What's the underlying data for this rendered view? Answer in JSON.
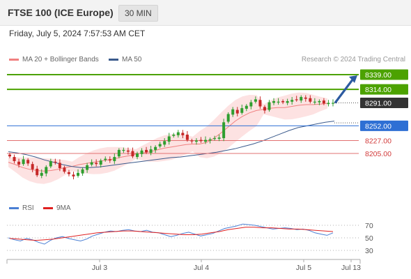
{
  "header": {
    "title": "FTSE 100 (ICE Europe)",
    "timeframe": "30 MIN",
    "datetime": "Friday, July 5, 2024 7:57:53 AM CET",
    "copyright": "Research © 2024 Trading Central"
  },
  "legend": {
    "ma20_label": "MA 20 + Bollinger Bands",
    "ma50_label": "MA 50",
    "rsi_label": "RSI",
    "rsi_ma_label": "9MA"
  },
  "colors": {
    "resistance": "#4ca200",
    "current": "#333333",
    "pivot": "#2e6fd4",
    "support": "#e27070",
    "ma20": "#f08080",
    "ma50": "#3a5a8c",
    "bollinger": "#fcd8d8",
    "candle_up": "#2f9e2f",
    "candle_down": "#c62828",
    "arrow": "#2c5aa0",
    "rsi": "#4a7fd4",
    "rsi_ma": "#e02020"
  },
  "chart_data": [
    {
      "type": "candlestick",
      "title": "FTSE 100 (ICE Europe)",
      "timeframe": "30 MIN",
      "x_ticks": [
        "Jul 3",
        "Jul 4",
        "Jul 5",
        "Jul 13"
      ],
      "levels": [
        {
          "label": "8339.00",
          "value": 8339,
          "kind": "resistance"
        },
        {
          "label": "8314.00",
          "value": 8314,
          "kind": "resistance"
        },
        {
          "label": "8291.00",
          "value": 8291,
          "kind": "current"
        },
        {
          "label": "8252.00",
          "value": 8252,
          "kind": "pivot"
        },
        {
          "label": "8227.00",
          "value": 8227,
          "kind": "support"
        },
        {
          "label": "8205.00",
          "value": 8205,
          "kind": "support"
        }
      ],
      "close_series": [
        8200,
        8192,
        8186,
        8195,
        8188,
        8178,
        8168,
        8172,
        8182,
        8192,
        8190,
        8180,
        8174,
        8170,
        8166,
        8172,
        8178,
        8185,
        8190,
        8187,
        8193,
        8196,
        8193,
        8199,
        8211,
        8211,
        8208,
        8200,
        8205,
        8210,
        8207,
        8212,
        8216,
        8221,
        8226,
        8234,
        8237,
        8241,
        8236,
        8228,
        8226,
        8227,
        8226,
        8228,
        8229,
        8231,
        8232,
        8258,
        8272,
        8280,
        8273,
        8282,
        8286,
        8292,
        8297,
        8285,
        8278,
        8292,
        8294,
        8293,
        8292,
        8294,
        8296,
        8296,
        8301,
        8298,
        8293,
        8293,
        8294,
        8290,
        8291,
        8291
      ],
      "ma20_series": [
        8190,
        8186,
        8181,
        8178,
        8176,
        8175,
        8176,
        8178,
        8181,
        8183,
        8186,
        8188,
        8190,
        8192,
        8194,
        8196,
        8199,
        8201,
        8204,
        8206,
        8208,
        8211,
        8214,
        8216,
        8218,
        8220,
        8221,
        8221,
        8224,
        8231,
        8240,
        8250,
        8260,
        8268,
        8274,
        8278,
        8280,
        8282,
        8283,
        8283,
        8285,
        8287,
        8288,
        8288,
        8289,
        8290
      ],
      "ma50_series": [
        8208,
        8206,
        8203,
        8199,
        8194,
        8190,
        8186,
        8183,
        8181,
        8181,
        8182,
        8184,
        8186,
        8188,
        8190,
        8192,
        8194,
        8196,
        8198,
        8199,
        8201,
        8203,
        8205,
        8207,
        8210,
        8213,
        8217,
        8221,
        8226,
        8232,
        8238,
        8244,
        8249,
        8252,
        8255,
        8258,
        8260
      ],
      "projection_target": 8339
    },
    {
      "type": "line",
      "name": "RSI",
      "yticks": [
        70,
        50,
        30
      ],
      "guide_levels": [
        70,
        50,
        30
      ],
      "series": [
        {
          "name": "RSI",
          "values": [
            50,
            47,
            45,
            49,
            47,
            43,
            40,
            46,
            50,
            52,
            49,
            47,
            45,
            48,
            53,
            56,
            59,
            61,
            60,
            62,
            63,
            61,
            60,
            62,
            59,
            58,
            55,
            52,
            54,
            57,
            59,
            56,
            53,
            55,
            57,
            61,
            65,
            67,
            69,
            72,
            71,
            70,
            68,
            66,
            64,
            65,
            66,
            65,
            63,
            64,
            62,
            58,
            56,
            54,
            58
          ]
        },
        {
          "name": "9MA",
          "values": [
            49,
            48,
            47,
            46,
            47,
            48,
            50,
            52,
            54,
            56,
            58,
            59,
            60,
            61,
            61,
            60,
            59,
            58,
            57,
            56,
            55,
            55,
            56,
            58,
            60,
            63,
            65,
            67,
            67,
            66,
            66,
            65,
            64,
            64,
            63,
            62,
            61,
            60
          ]
        }
      ]
    }
  ]
}
